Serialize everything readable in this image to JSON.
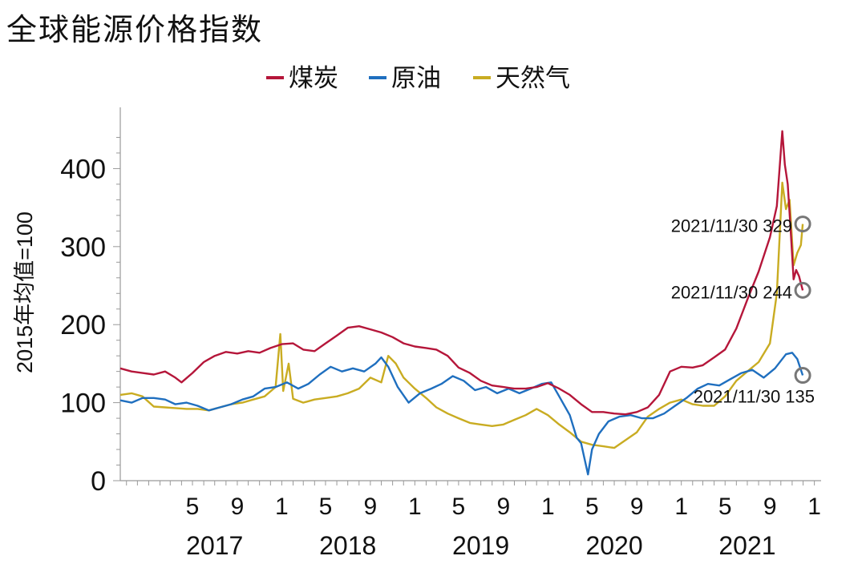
{
  "chart_data": {
    "type": "line",
    "title": "全球能源价格指数",
    "ylabel": "2015年均值=100",
    "xlabel": "",
    "ylim": [
      0,
      460
    ],
    "xlim": [
      "2016-10-15",
      "2022-01-15"
    ],
    "y_ticks": [
      "0",
      "100",
      "200",
      "300",
      "400"
    ],
    "x_month_ticks": [
      {
        "date": "2017-05-01",
        "label": "5"
      },
      {
        "date": "2017-09-01",
        "label": "9"
      },
      {
        "date": "2018-01-01",
        "label": "1"
      },
      {
        "date": "2018-05-01",
        "label": "5"
      },
      {
        "date": "2018-09-01",
        "label": "9"
      },
      {
        "date": "2019-01-01",
        "label": "1"
      },
      {
        "date": "2019-05-01",
        "label": "5"
      },
      {
        "date": "2019-09-01",
        "label": "9"
      },
      {
        "date": "2020-01-01",
        "label": "1"
      },
      {
        "date": "2020-05-01",
        "label": "5"
      },
      {
        "date": "2020-09-01",
        "label": "9"
      },
      {
        "date": "2021-01-01",
        "label": "1"
      },
      {
        "date": "2021-05-01",
        "label": "5"
      },
      {
        "date": "2021-09-01",
        "label": "9"
      },
      {
        "date": "2022-01-01",
        "label": "1"
      }
    ],
    "x_year_labels": [
      {
        "date": "2017-07-01",
        "label": "2017"
      },
      {
        "date": "2018-07-01",
        "label": "2018"
      },
      {
        "date": "2019-07-01",
        "label": "2019"
      },
      {
        "date": "2020-07-01",
        "label": "2020"
      },
      {
        "date": "2021-07-01",
        "label": "2021"
      }
    ],
    "legend_position": "top-center",
    "grid": false,
    "series": [
      {
        "name": "煤炭",
        "color": "#b5163a",
        "points": [
          [
            "2016-10-15",
            144
          ],
          [
            "2016-11-15",
            140
          ],
          [
            "2016-12-15",
            138
          ],
          [
            "2017-01-15",
            136
          ],
          [
            "2017-02-15",
            140
          ],
          [
            "2017-03-15",
            132
          ],
          [
            "2017-04-01",
            126
          ],
          [
            "2017-05-01",
            138
          ],
          [
            "2017-06-01",
            152
          ],
          [
            "2017-07-01",
            160
          ],
          [
            "2017-08-01",
            165
          ],
          [
            "2017-09-01",
            163
          ],
          [
            "2017-10-01",
            166
          ],
          [
            "2017-11-01",
            164
          ],
          [
            "2017-12-01",
            170
          ],
          [
            "2018-01-01",
            175
          ],
          [
            "2018-02-01",
            176
          ],
          [
            "2018-03-01",
            168
          ],
          [
            "2018-04-01",
            166
          ],
          [
            "2018-05-01",
            176
          ],
          [
            "2018-06-01",
            186
          ],
          [
            "2018-07-01",
            196
          ],
          [
            "2018-08-01",
            198
          ],
          [
            "2018-09-01",
            194
          ],
          [
            "2018-10-01",
            190
          ],
          [
            "2018-11-01",
            184
          ],
          [
            "2018-12-01",
            176
          ],
          [
            "2019-01-01",
            172
          ],
          [
            "2019-02-01",
            170
          ],
          [
            "2019-03-01",
            168
          ],
          [
            "2019-04-01",
            160
          ],
          [
            "2019-05-01",
            145
          ],
          [
            "2019-06-01",
            138
          ],
          [
            "2019-07-01",
            128
          ],
          [
            "2019-08-01",
            122
          ],
          [
            "2019-09-01",
            120
          ],
          [
            "2019-10-01",
            118
          ],
          [
            "2019-11-01",
            118
          ],
          [
            "2019-12-01",
            120
          ],
          [
            "2020-01-01",
            125
          ],
          [
            "2020-02-01",
            118
          ],
          [
            "2020-03-01",
            110
          ],
          [
            "2020-04-01",
            98
          ],
          [
            "2020-05-01",
            88
          ],
          [
            "2020-06-01",
            88
          ],
          [
            "2020-07-01",
            86
          ],
          [
            "2020-08-01",
            85
          ],
          [
            "2020-09-01",
            88
          ],
          [
            "2020-10-01",
            94
          ],
          [
            "2020-11-01",
            110
          ],
          [
            "2020-12-01",
            140
          ],
          [
            "2021-01-01",
            146
          ],
          [
            "2021-02-01",
            145
          ],
          [
            "2021-03-01",
            148
          ],
          [
            "2021-04-01",
            158
          ],
          [
            "2021-05-01",
            168
          ],
          [
            "2021-06-01",
            195
          ],
          [
            "2021-07-01",
            232
          ],
          [
            "2021-08-01",
            268
          ],
          [
            "2021-09-01",
            312
          ],
          [
            "2021-09-20",
            352
          ],
          [
            "2021-10-05",
            448
          ],
          [
            "2021-10-12",
            405
          ],
          [
            "2021-10-20",
            380
          ],
          [
            "2021-10-28",
            320
          ],
          [
            "2021-11-05",
            258
          ],
          [
            "2021-11-12",
            270
          ],
          [
            "2021-11-20",
            262
          ],
          [
            "2021-11-30",
            244
          ]
        ]
      },
      {
        "name": "原油",
        "color": "#1f6fbf",
        "points": [
          [
            "2016-10-15",
            103
          ],
          [
            "2016-11-15",
            100
          ],
          [
            "2016-12-15",
            106
          ],
          [
            "2017-01-15",
            106
          ],
          [
            "2017-02-15",
            104
          ],
          [
            "2017-03-15",
            98
          ],
          [
            "2017-04-15",
            100
          ],
          [
            "2017-05-15",
            96
          ],
          [
            "2017-06-15",
            90
          ],
          [
            "2017-07-15",
            94
          ],
          [
            "2017-08-15",
            98
          ],
          [
            "2017-09-15",
            104
          ],
          [
            "2017-10-15",
            108
          ],
          [
            "2017-11-15",
            118
          ],
          [
            "2017-12-15",
            120
          ],
          [
            "2018-01-15",
            126
          ],
          [
            "2018-02-15",
            118
          ],
          [
            "2018-03-15",
            124
          ],
          [
            "2018-04-15",
            136
          ],
          [
            "2018-05-15",
            146
          ],
          [
            "2018-06-15",
            140
          ],
          [
            "2018-07-15",
            144
          ],
          [
            "2018-08-15",
            140
          ],
          [
            "2018-09-15",
            150
          ],
          [
            "2018-10-01",
            158
          ],
          [
            "2018-10-20",
            146
          ],
          [
            "2018-11-15",
            120
          ],
          [
            "2018-12-15",
            100
          ],
          [
            "2019-01-15",
            112
          ],
          [
            "2019-02-15",
            118
          ],
          [
            "2019-03-15",
            124
          ],
          [
            "2019-04-15",
            134
          ],
          [
            "2019-05-15",
            128
          ],
          [
            "2019-06-15",
            116
          ],
          [
            "2019-07-15",
            120
          ],
          [
            "2019-08-15",
            112
          ],
          [
            "2019-09-15",
            118
          ],
          [
            "2019-10-15",
            112
          ],
          [
            "2019-11-15",
            118
          ],
          [
            "2019-12-15",
            124
          ],
          [
            "2020-01-10",
            126
          ],
          [
            "2020-02-01",
            108
          ],
          [
            "2020-03-01",
            84
          ],
          [
            "2020-03-20",
            55
          ],
          [
            "2020-04-01",
            48
          ],
          [
            "2020-04-20",
            8
          ],
          [
            "2020-05-01",
            40
          ],
          [
            "2020-05-20",
            60
          ],
          [
            "2020-06-15",
            76
          ],
          [
            "2020-07-15",
            82
          ],
          [
            "2020-08-15",
            84
          ],
          [
            "2020-09-15",
            80
          ],
          [
            "2020-10-15",
            80
          ],
          [
            "2020-11-15",
            86
          ],
          [
            "2020-12-15",
            96
          ],
          [
            "2021-01-15",
            106
          ],
          [
            "2021-02-15",
            118
          ],
          [
            "2021-03-15",
            124
          ],
          [
            "2021-04-15",
            122
          ],
          [
            "2021-05-15",
            130
          ],
          [
            "2021-06-15",
            138
          ],
          [
            "2021-07-15",
            142
          ],
          [
            "2021-08-15",
            132
          ],
          [
            "2021-09-15",
            144
          ],
          [
            "2021-10-15",
            162
          ],
          [
            "2021-11-01",
            164
          ],
          [
            "2021-11-15",
            156
          ],
          [
            "2021-11-30",
            135
          ]
        ]
      },
      {
        "name": "天然气",
        "color": "#c9ac22",
        "points": [
          [
            "2016-10-15",
            110
          ],
          [
            "2016-11-15",
            112
          ],
          [
            "2016-12-15",
            108
          ],
          [
            "2017-01-15",
            95
          ],
          [
            "2017-02-15",
            94
          ],
          [
            "2017-03-15",
            93
          ],
          [
            "2017-04-15",
            92
          ],
          [
            "2017-05-15",
            92
          ],
          [
            "2017-06-15",
            90
          ],
          [
            "2017-07-15",
            94
          ],
          [
            "2017-08-15",
            98
          ],
          [
            "2017-09-15",
            100
          ],
          [
            "2017-10-15",
            104
          ],
          [
            "2017-11-15",
            108
          ],
          [
            "2017-12-15",
            120
          ],
          [
            "2017-12-28",
            188
          ],
          [
            "2018-01-05",
            115
          ],
          [
            "2018-01-20",
            150
          ],
          [
            "2018-02-01",
            105
          ],
          [
            "2018-03-01",
            100
          ],
          [
            "2018-04-01",
            104
          ],
          [
            "2018-05-01",
            106
          ],
          [
            "2018-06-01",
            108
          ],
          [
            "2018-07-01",
            112
          ],
          [
            "2018-08-01",
            118
          ],
          [
            "2018-09-01",
            132
          ],
          [
            "2018-10-01",
            126
          ],
          [
            "2018-10-20",
            160
          ],
          [
            "2018-11-10",
            150
          ],
          [
            "2018-12-01",
            132
          ],
          [
            "2019-01-01",
            118
          ],
          [
            "2019-02-01",
            106
          ],
          [
            "2019-03-01",
            94
          ],
          [
            "2019-04-01",
            86
          ],
          [
            "2019-05-01",
            80
          ],
          [
            "2019-06-01",
            74
          ],
          [
            "2019-07-01",
            72
          ],
          [
            "2019-08-01",
            70
          ],
          [
            "2019-09-01",
            72
          ],
          [
            "2019-10-01",
            78
          ],
          [
            "2019-11-01",
            84
          ],
          [
            "2019-12-01",
            92
          ],
          [
            "2020-01-01",
            84
          ],
          [
            "2020-02-01",
            72
          ],
          [
            "2020-03-01",
            62
          ],
          [
            "2020-04-01",
            50
          ],
          [
            "2020-05-01",
            46
          ],
          [
            "2020-06-01",
            44
          ],
          [
            "2020-07-01",
            42
          ],
          [
            "2020-08-01",
            52
          ],
          [
            "2020-09-01",
            62
          ],
          [
            "2020-10-01",
            82
          ],
          [
            "2020-11-01",
            92
          ],
          [
            "2020-12-01",
            100
          ],
          [
            "2021-01-01",
            104
          ],
          [
            "2021-02-01",
            98
          ],
          [
            "2021-03-01",
            96
          ],
          [
            "2021-04-01",
            96
          ],
          [
            "2021-05-01",
            108
          ],
          [
            "2021-06-01",
            128
          ],
          [
            "2021-07-01",
            140
          ],
          [
            "2021-08-01",
            152
          ],
          [
            "2021-09-01",
            176
          ],
          [
            "2021-09-20",
            240
          ],
          [
            "2021-10-05",
            382
          ],
          [
            "2021-10-15",
            348
          ],
          [
            "2021-10-25",
            360
          ],
          [
            "2021-11-05",
            276
          ],
          [
            "2021-11-15",
            292
          ],
          [
            "2021-11-25",
            302
          ],
          [
            "2021-11-30",
            329
          ]
        ]
      }
    ],
    "annotations": [
      {
        "text": "2021/11/30 329",
        "date": "2021-11-30",
        "value": 329,
        "color": "#777777"
      },
      {
        "text": "2021/11/30 244",
        "date": "2021-11-30",
        "value": 244,
        "color": "#777777"
      },
      {
        "text": "2021/11/30 135",
        "date": "2021-11-30",
        "value": 135,
        "color": "#777777"
      }
    ]
  }
}
